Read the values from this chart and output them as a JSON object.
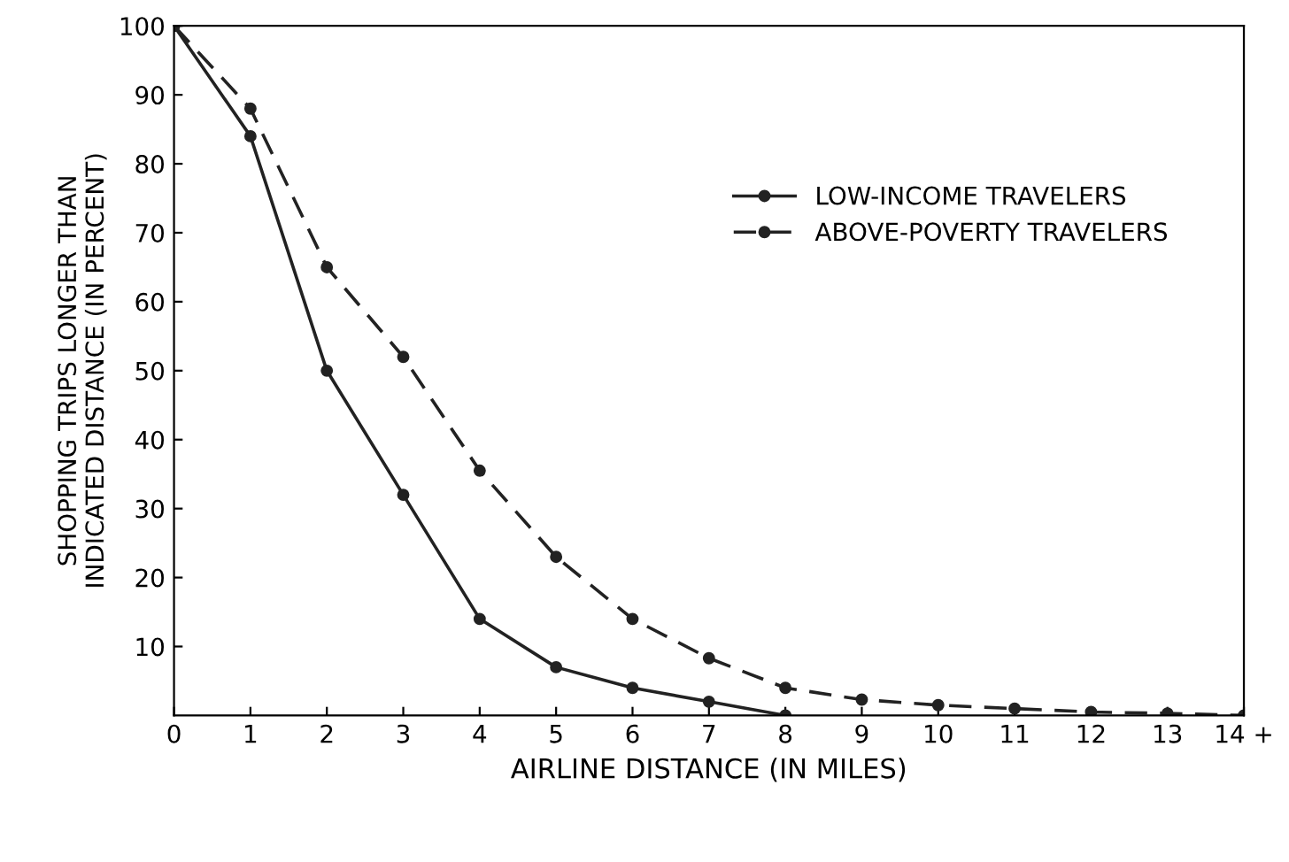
{
  "chart_data": {
    "type": "line",
    "xlabel": "AIRLINE DISTANCE (IN MILES)",
    "ylabel": "SHOPPING TRIPS LONGER THAN\nINDICATED DISTANCE (IN PERCENT)",
    "x": [
      0,
      1,
      2,
      3,
      4,
      5,
      6,
      7,
      8,
      9,
      10,
      11,
      12,
      13,
      14
    ],
    "series": [
      {
        "name": "LOW-INCOME TRAVELERS",
        "color": "#222222",
        "line_style": "solid",
        "x": [
          0,
          1,
          2,
          3,
          4,
          5,
          6,
          7,
          8
        ],
        "values": [
          100,
          84,
          50,
          32,
          14,
          7,
          4,
          2,
          0
        ]
      },
      {
        "name": "ABOVE-POVERTY TRAVELERS",
        "color": "#222222",
        "line_style": "dashed",
        "values": [
          100,
          88,
          65,
          52,
          35.5,
          23,
          14,
          8.3,
          4,
          2.3,
          1.5,
          1,
          0.5,
          0.3,
          0
        ]
      }
    ],
    "marker": "circle",
    "xlim": [
      0,
      14
    ],
    "ylim": [
      0,
      100
    ],
    "xticks": [
      0,
      1,
      2,
      3,
      4,
      5,
      6,
      7,
      8,
      9,
      10,
      11,
      12,
      13,
      {
        "value": 14,
        "label": "14 +"
      }
    ],
    "yticks": [
      10,
      20,
      30,
      40,
      50,
      60,
      70,
      80,
      90,
      100
    ],
    "grid": false,
    "legend": "upper right"
  }
}
